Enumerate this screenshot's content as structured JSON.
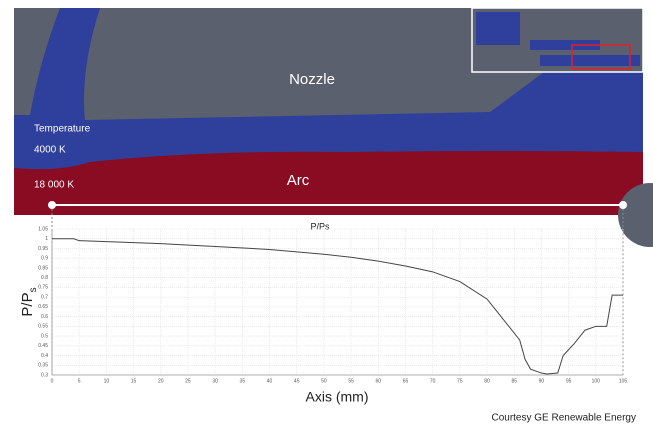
{
  "figure": {
    "nozzle_label": "Nozzle",
    "temperature_label": "Temperature",
    "low_temp": "4000 K",
    "high_temp": "18 000 K",
    "arc_label": "Arc",
    "credit": "Courtesy GE Renewable Energy"
  },
  "chart_data": {
    "type": "line",
    "title": "P/Ps",
    "x_label": "Axis (mm)",
    "y_label": "P/P",
    "y_label_subscript": "s",
    "xlim": [
      0,
      105
    ],
    "xticks": [
      0,
      5,
      10,
      15,
      20,
      25,
      30,
      35,
      40,
      45,
      50,
      55,
      60,
      65,
      70,
      75,
      80,
      85,
      90,
      95,
      100,
      105
    ],
    "ylim": [
      0.3,
      1.05
    ],
    "yticks": [
      0.3,
      0.35,
      0.4,
      0.45,
      0.5,
      0.55,
      0.6,
      0.65,
      0.7,
      0.75,
      0.8,
      0.85,
      0.9,
      0.95,
      1,
      1.05
    ],
    "grid": true,
    "series": [
      {
        "name": "P/Ps",
        "color": "#444444",
        "x": [
          0,
          4,
          5,
          10,
          20,
          30,
          40,
          50,
          55,
          60,
          65,
          70,
          75,
          80,
          82,
          84,
          86,
          87,
          88,
          90,
          91,
          93,
          94,
          96,
          98,
          100,
          102,
          103,
          105
        ],
        "values": [
          1,
          1,
          0.99,
          0.985,
          0.975,
          0.96,
          0.945,
          0.92,
          0.905,
          0.885,
          0.86,
          0.83,
          0.78,
          0.69,
          0.62,
          0.55,
          0.48,
          0.38,
          0.33,
          0.31,
          0.305,
          0.31,
          0.4,
          0.46,
          0.53,
          0.55,
          0.55,
          0.71,
          0.71
        ]
      }
    ]
  }
}
